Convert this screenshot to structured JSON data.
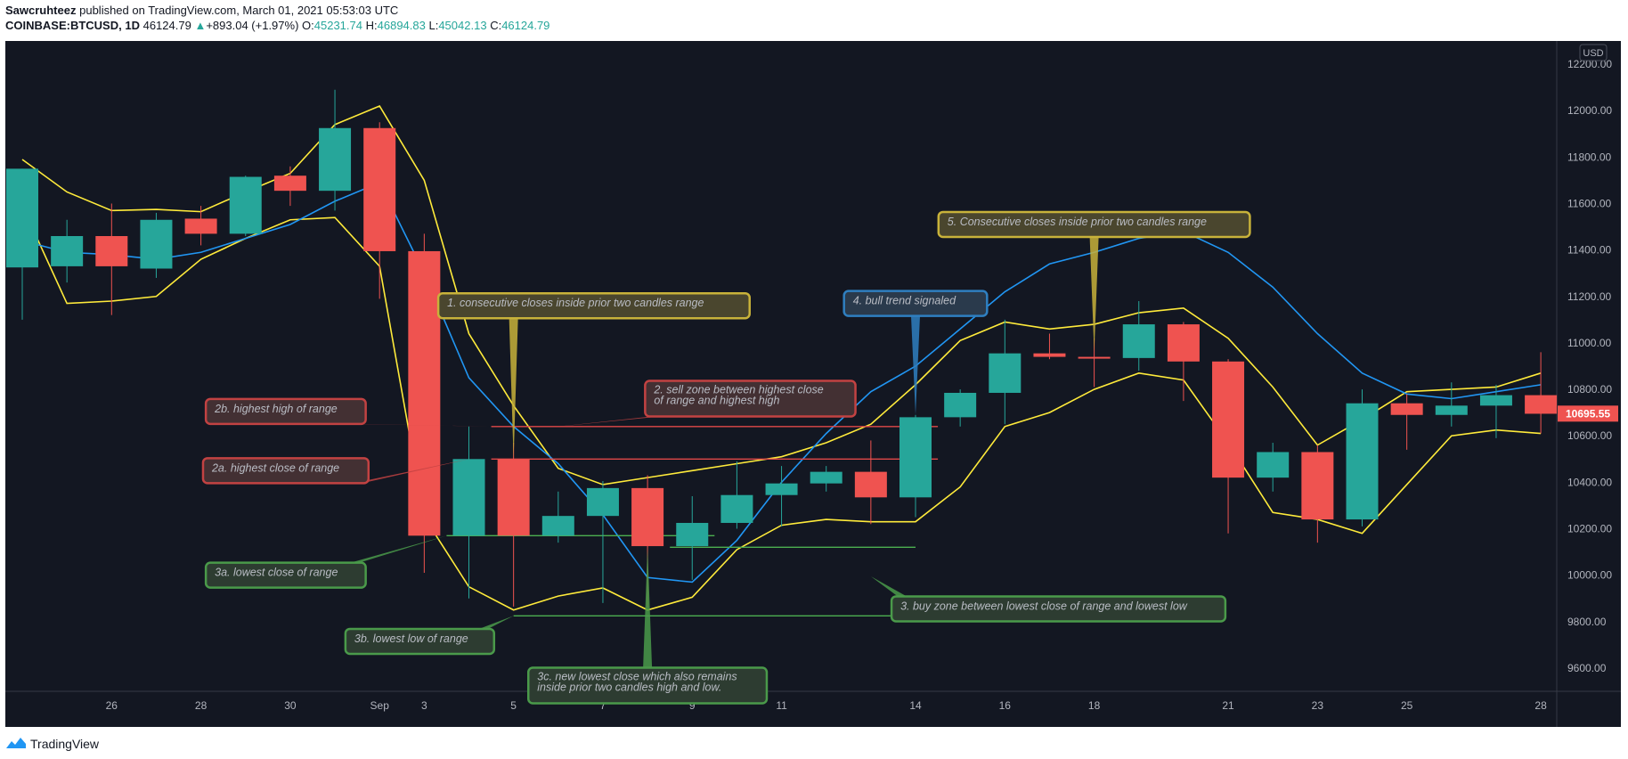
{
  "header": {
    "author": "Sawcruhteez",
    "published": "published on TradingView.com, March 01, 2021 05:53:03 UTC",
    "symbol": "COINBASE:BTCUSD, 1D",
    "last": "46124.79",
    "change_arrow": "▲",
    "change": "+893.04 (+1.97%)",
    "o_label": "O:",
    "o_value": "45231.74",
    "h_label": "H:",
    "h_value": "46894.83",
    "l_label": "L:",
    "l_value": "45042.13",
    "c_label": "C:",
    "c_value": "46124.79"
  },
  "footer": {
    "brand": "TradingView",
    "logo_icon": "tradingview-logo-icon"
  },
  "colors": {
    "background": "#131722",
    "up": "#26a69a",
    "down": "#ef5350",
    "ma": "#2196f3",
    "band": "#ffeb3b",
    "resistance_line": "#e04848",
    "support_line": "#4caf50",
    "text": "#b2b5be"
  },
  "chart_data": {
    "type": "candlestick",
    "currency": "USD",
    "last_price_label": "10695.55",
    "ylim": [
      9500,
      12300
    ],
    "y_ticks": [
      9600,
      9800,
      10000,
      10200,
      10400,
      10600,
      10800,
      11000,
      11200,
      11400,
      11600,
      11800,
      12000,
      12200
    ],
    "x_ticks": [
      "26",
      "28",
      "30",
      "Sep",
      "3",
      "5",
      "7",
      "9",
      "11",
      "14",
      "16",
      "18",
      "21",
      "23",
      "25",
      "28"
    ],
    "candles": [
      {
        "o": 11325,
        "h": 11750,
        "l": 11100,
        "c": 11750
      },
      {
        "o": 11330,
        "h": 11530,
        "l": 11260,
        "c": 11460
      },
      {
        "o": 11460,
        "h": 11600,
        "l": 11120,
        "c": 11330
      },
      {
        "o": 11320,
        "h": 11560,
        "l": 11280,
        "c": 11530
      },
      {
        "o": 11535,
        "h": 11590,
        "l": 11420,
        "c": 11470
      },
      {
        "o": 11470,
        "h": 11720,
        "l": 11460,
        "c": 11715
      },
      {
        "o": 11720,
        "h": 11760,
        "l": 11590,
        "c": 11655
      },
      {
        "o": 11655,
        "h": 12090,
        "l": 11570,
        "c": 11925
      },
      {
        "o": 11925,
        "h": 11950,
        "l": 11190,
        "c": 11395
      },
      {
        "o": 11395,
        "h": 11470,
        "l": 10010,
        "c": 10170
      },
      {
        "o": 10170,
        "h": 10640,
        "l": 9900,
        "c": 10500
      },
      {
        "o": 10500,
        "h": 10570,
        "l": 9865,
        "c": 10170
      },
      {
        "o": 10170,
        "h": 10360,
        "l": 10140,
        "c": 10255
      },
      {
        "o": 10255,
        "h": 10405,
        "l": 9880,
        "c": 10375
      },
      {
        "o": 10375,
        "h": 10430,
        "l": 9860,
        "c": 10125
      },
      {
        "o": 10125,
        "h": 10340,
        "l": 9980,
        "c": 10225
      },
      {
        "o": 10225,
        "h": 10490,
        "l": 10200,
        "c": 10345
      },
      {
        "o": 10345,
        "h": 10470,
        "l": 10210,
        "c": 10395
      },
      {
        "o": 10395,
        "h": 10470,
        "l": 10360,
        "c": 10445
      },
      {
        "o": 10445,
        "h": 10580,
        "l": 10220,
        "c": 10335
      },
      {
        "o": 10335,
        "h": 10690,
        "l": 10250,
        "c": 10680
      },
      {
        "o": 10680,
        "h": 10800,
        "l": 10640,
        "c": 10785
      },
      {
        "o": 10785,
        "h": 11100,
        "l": 10650,
        "c": 10955
      },
      {
        "o": 10955,
        "h": 11040,
        "l": 10930,
        "c": 10940
      },
      {
        "o": 10940,
        "h": 11020,
        "l": 10810,
        "c": 10935
      },
      {
        "o": 10935,
        "h": 11180,
        "l": 10880,
        "c": 11080
      },
      {
        "o": 11080,
        "h": 11090,
        "l": 10750,
        "c": 10920
      },
      {
        "o": 10920,
        "h": 10930,
        "l": 10180,
        "c": 10420
      },
      {
        "o": 10420,
        "h": 10570,
        "l": 10360,
        "c": 10530
      },
      {
        "o": 10530,
        "h": 10560,
        "l": 10140,
        "c": 10240
      },
      {
        "o": 10240,
        "h": 10800,
        "l": 10210,
        "c": 10740
      },
      {
        "o": 10740,
        "h": 10780,
        "l": 10540,
        "c": 10690
      },
      {
        "o": 10690,
        "h": 10830,
        "l": 10640,
        "c": 10730
      },
      {
        "o": 10730,
        "h": 10820,
        "l": 10590,
        "c": 10775
      },
      {
        "o": 10775,
        "h": 10960,
        "l": 10610,
        "c": 10695
      }
    ],
    "ma_line": [
      11440,
      11390,
      11380,
      11360,
      11390,
      11450,
      11510,
      11610,
      11690,
      11300,
      10850,
      10640,
      10480,
      10260,
      9990,
      9970,
      10150,
      10400,
      10610,
      10790,
      10900,
      11060,
      11220,
      11340,
      11390,
      11450,
      11480,
      11390,
      11240,
      11040,
      10870,
      10780,
      10760,
      10790,
      10820
    ],
    "upper_band": [
      11790,
      11650,
      11570,
      11575,
      11565,
      11650,
      11730,
      11940,
      12020,
      11700,
      11040,
      10730,
      10460,
      10390,
      10420,
      10450,
      10480,
      10510,
      10570,
      10650,
      10820,
      11010,
      11090,
      11060,
      11080,
      11130,
      11150,
      11020,
      10810,
      10560,
      10670,
      10790,
      10800,
      10810,
      10870
    ],
    "lower_band": [
      11590,
      11170,
      11180,
      11200,
      11360,
      11450,
      11530,
      11540,
      11330,
      10250,
      9950,
      9850,
      9910,
      9945,
      9850,
      9905,
      10110,
      10215,
      10240,
      10230,
      10230,
      10380,
      10640,
      10700,
      10800,
      10870,
      10840,
      10570,
      10270,
      10240,
      10180,
      10390,
      10600,
      10625,
      10610
    ],
    "band_x_start_offset": 0.5,
    "horizontal_lines": [
      {
        "name": "highest-high-of-range",
        "y": 10640,
        "from": 10.5,
        "to": 20.5,
        "color": "#e04848"
      },
      {
        "name": "highest-close-of-range",
        "y": 10500,
        "from": 10.5,
        "to": 20.5,
        "color": "#e04848"
      },
      {
        "name": "lowest-close-of-range",
        "y": 10170,
        "from": 9.5,
        "to": 15.5,
        "color": "#4caf50"
      },
      {
        "name": "lowest-close-extended",
        "y": 10120,
        "from": 14.5,
        "to": 20.0,
        "color": "#4caf50"
      },
      {
        "name": "lowest-low-of-range",
        "y": 9825,
        "from": 11.0,
        "to": 20.0,
        "color": "#4caf50"
      }
    ],
    "annotations": [
      {
        "text": "1. consecutive closes inside prior two candles range",
        "lines": [
          "1. consecutive closes inside prior two candles range"
        ],
        "x": 12.8,
        "y": 11160,
        "border": "#c8b23a",
        "bg": "#4a462e",
        "target": [
          11.0,
          10500
        ]
      },
      {
        "text": "2. sell zone between highest close of range and highest high",
        "lines": [
          "2. sell zone between highest close",
          "of range and highest high"
        ],
        "x": 16.3,
        "y": 10760,
        "border": "#c24242",
        "bg": "#433033",
        "target": [
          12.0,
          10640
        ]
      },
      {
        "text": "2b. highest high of range",
        "lines": [
          "2b. highest high of range"
        ],
        "x": 5.9,
        "y": 10705,
        "border": "#c24242",
        "bg": "#433033",
        "target": [
          10.5,
          10640
        ]
      },
      {
        "text": "2a. highest close of range",
        "lines": [
          "2a. highest close of range"
        ],
        "x": 5.9,
        "y": 10450,
        "border": "#c24242",
        "bg": "#433033",
        "target": [
          10.0,
          10500
        ]
      },
      {
        "text": "3a. lowest close of range",
        "lines": [
          "3a. lowest close of range"
        ],
        "x": 5.9,
        "y": 10000,
        "border": "#4a9a4a",
        "bg": "#2d3c31",
        "target": [
          9.5,
          10170
        ]
      },
      {
        "text": "3b. lowest low of range",
        "lines": [
          "3b. lowest low of range"
        ],
        "x": 8.9,
        "y": 9715,
        "border": "#4a9a4a",
        "bg": "#2d3c31",
        "target": [
          11.0,
          9825
        ]
      },
      {
        "text": "3c. new lowest close which also remains inside prior two candles high and low.",
        "lines": [
          "3c. new lowest close which also remains",
          "inside prior two candles high and low."
        ],
        "x": 14.0,
        "y": 9525,
        "border": "#4a9a4a",
        "bg": "#2d3c31",
        "target": [
          14.0,
          10120
        ]
      },
      {
        "text": "3. buy zone between lowest close of range and lowest low",
        "lines": [
          "3. buy zone between lowest close of range and lowest low"
        ],
        "x": 23.2,
        "y": 9855,
        "border": "#4a9a4a",
        "bg": "#2d3c31",
        "target": [
          19.0,
          9995
        ]
      },
      {
        "text": "4. bull trend signaled",
        "lines": [
          "4. bull trend signaled"
        ],
        "x": 20.0,
        "y": 11170,
        "border": "#2f7fc0",
        "bg": "#2a3a4c",
        "target": [
          20.0,
          10690
        ]
      },
      {
        "text": "5. Consecutive closes inside prior two candles range",
        "lines": [
          "5. Consecutive closes inside prior two candles range"
        ],
        "x": 24.0,
        "y": 11510,
        "border": "#c8b23a",
        "bg": "#4a462e",
        "target": [
          24.0,
          10960
        ]
      }
    ]
  }
}
